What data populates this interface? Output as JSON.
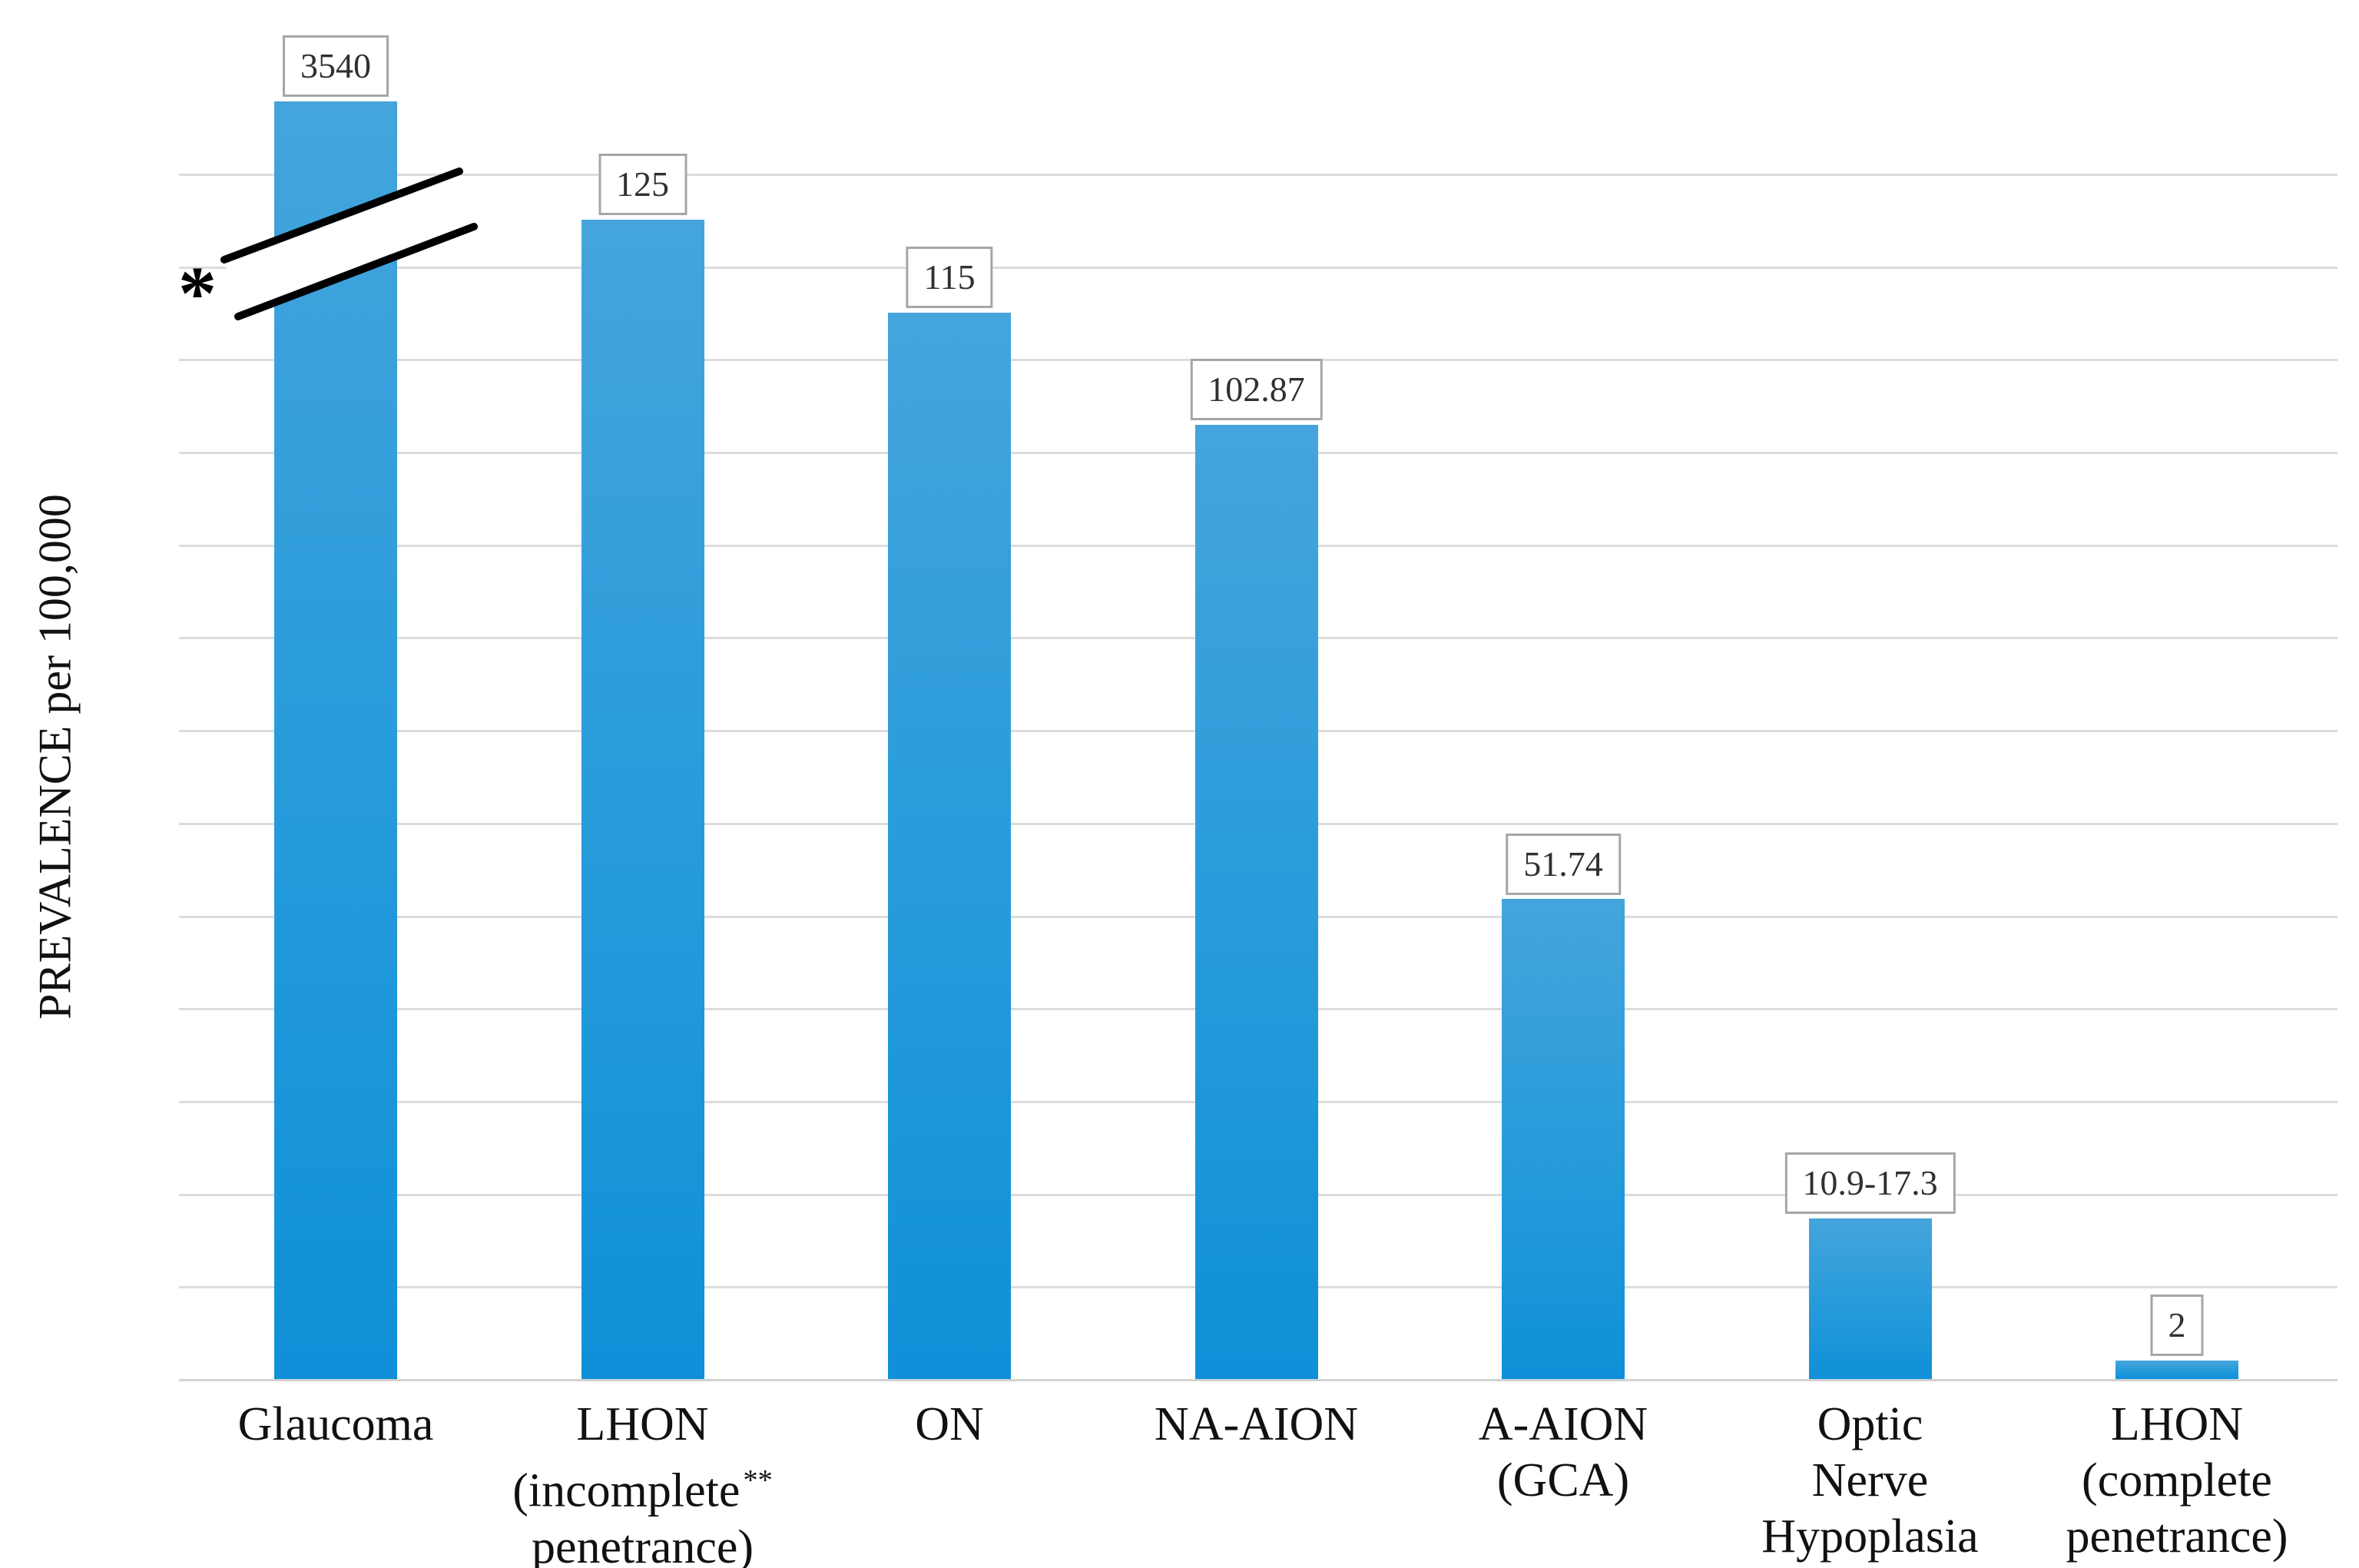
{
  "chart_data": {
    "type": "bar",
    "title": "",
    "xlabel": "",
    "ylabel": "PREVALENCE per 100,000",
    "ylim": [
      0,
      130
    ],
    "gridline_step": 10,
    "grid": true,
    "legend": false,
    "y_tick_labels_visible": false,
    "axis_break": {
      "present": true,
      "marker": "*",
      "note": "y-axis broken on Glaucoma bar (true value 3540 exceeds axis range)"
    },
    "footnote_marker_on_lhon_incomplete": "**",
    "bar_color_top": "#45A4DC",
    "bar_color_mid": "#2A9EDC",
    "bar_color_bottom": "#0F90D8",
    "gridline_color": "#dcdcdc",
    "label_box_border_color": "#a6a6a6",
    "bars": [
      {
        "category": "Glaucoma",
        "category_lines": [
          "Glaucoma"
        ],
        "value": 3540,
        "value_label": "3540",
        "drawn_units": 137.8,
        "broken": true
      },
      {
        "category": "LHON (incomplete** penetrance)",
        "category_lines": [
          "LHON",
          "(incomplete**",
          "penetrance)"
        ],
        "value": 125,
        "value_label": "125",
        "drawn_units": 125,
        "broken": false
      },
      {
        "category": "ON",
        "category_lines": [
          "ON"
        ],
        "value": 115,
        "value_label": "115",
        "drawn_units": 115,
        "broken": false
      },
      {
        "category": "NA-AION",
        "category_lines": [
          "NA-AION"
        ],
        "value": 102.87,
        "value_label": "102.87",
        "drawn_units": 102.87,
        "broken": false
      },
      {
        "category": "A-AION (GCA)",
        "category_lines": [
          "A-AION",
          "(GCA)"
        ],
        "value": 51.74,
        "value_label": "51.74",
        "drawn_units": 51.74,
        "broken": false
      },
      {
        "category": "Optic Nerve Hypoplasia",
        "category_lines": [
          "Optic",
          "Nerve",
          "Hypoplasia"
        ],
        "value": "10.9-17.3",
        "value_label": "10.9-17.3",
        "drawn_units": 17.3,
        "broken": false
      },
      {
        "category": "LHON (complete penetrance)",
        "category_lines": [
          "LHON",
          "(complete",
          "penetrance)"
        ],
        "value": 2,
        "value_label": "2",
        "drawn_units": 2,
        "broken": false
      }
    ]
  }
}
